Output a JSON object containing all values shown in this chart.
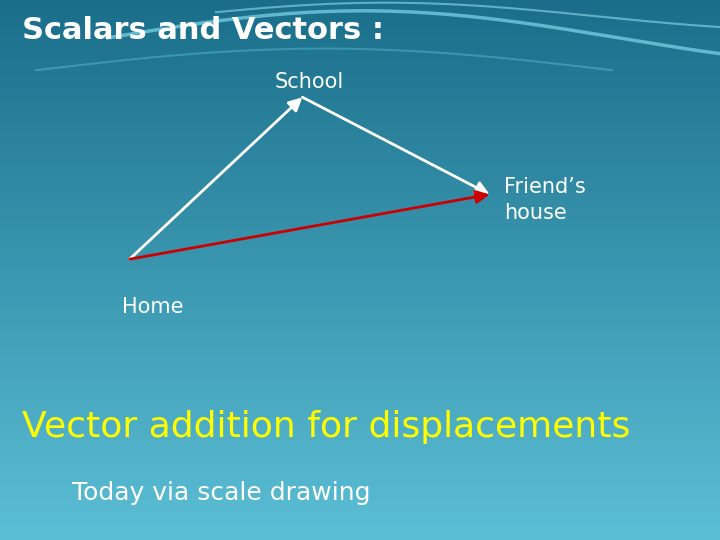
{
  "title": "Scalars and Vectors :",
  "title_color": "#ffffff",
  "title_fontsize": 22,
  "title_bold": true,
  "subtitle": "Vector addition for displacements",
  "subtitle_color": "#ffff00",
  "subtitle_fontsize": 26,
  "sub2": "Today via scale drawing",
  "sub2_color": "#ffffff",
  "sub2_fontsize": 18,
  "bg_top_color": "#1a6e8a",
  "bg_bottom_color": "#5bbfd6",
  "home": [
    0.18,
    0.52
  ],
  "school": [
    0.42,
    0.82
  ],
  "friend": [
    0.68,
    0.64
  ],
  "label_home": "Home",
  "label_school": "School",
  "label_friend": "Friend’s\nhouse",
  "arrow_white_color": "#ffffff",
  "arrow_red_color": "#cc0000",
  "arrow_lw": 2.0,
  "label_fontsize": 15,
  "label_color": "#ffffff"
}
